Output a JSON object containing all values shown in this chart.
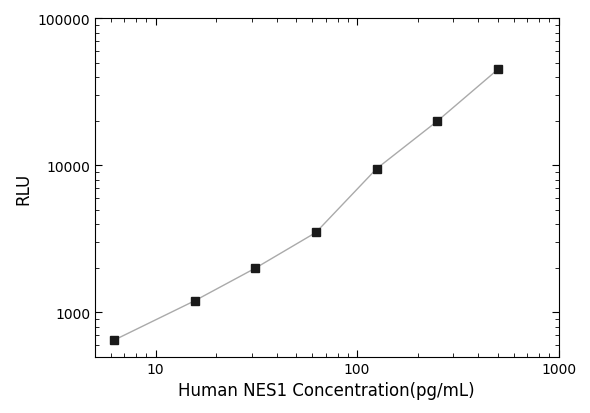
{
  "x": [
    6.25,
    15.625,
    31.25,
    62.5,
    125,
    250,
    500
  ],
  "y": [
    650,
    1200,
    2000,
    3500,
    9500,
    20000,
    45000
  ],
  "xlabel": "Human NES1 Concentration(pg/mL)",
  "ylabel": "RLU",
  "xlim": [
    5,
    1000
  ],
  "ylim": [
    500,
    100000
  ],
  "line_color": "#aaaaaa",
  "marker_color": "#1a1a1a",
  "marker": "s",
  "marker_size": 6,
  "background_color": "#ffffff",
  "xlabel_fontsize": 12,
  "ylabel_fontsize": 12,
  "tick_fontsize": 10
}
